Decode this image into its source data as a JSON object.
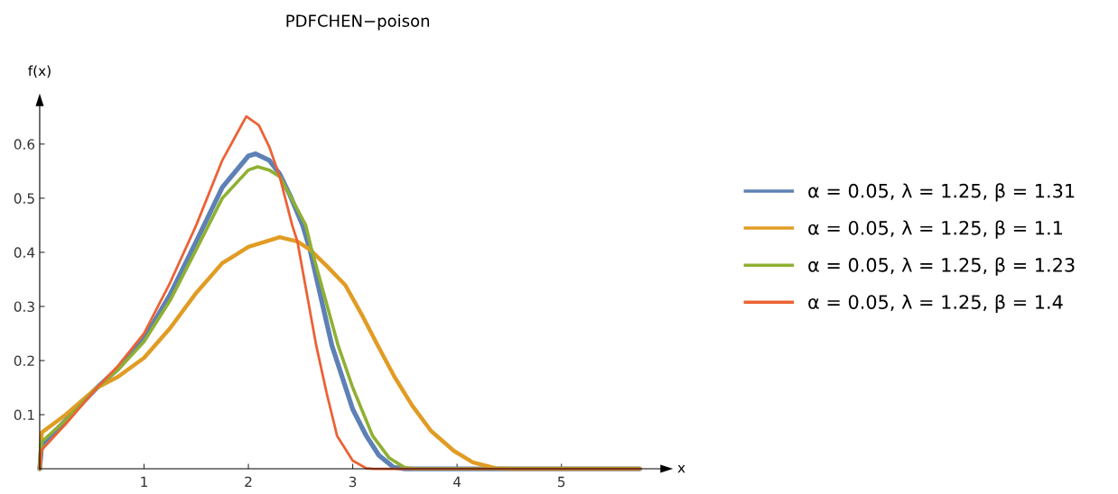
{
  "chart_data": {
    "type": "line",
    "title": "PDFCHEN−poison",
    "xlabel": "x",
    "ylabel": "f(x)",
    "xlim": [
      0,
      6
    ],
    "ylim": [
      0,
      0.68
    ],
    "xticks": [
      1,
      2,
      3,
      4,
      5
    ],
    "yticks": [
      0.1,
      0.2,
      0.3,
      0.4,
      0.5,
      0.6
    ],
    "grid": false,
    "legend": "right",
    "marker": "none",
    "line_style": "solid",
    "series": [
      {
        "name": "α = 0.05, λ = 1.25, β = 1.31",
        "color": "#5e81b5",
        "x": [
          0,
          0.02,
          0.25,
          0.55,
          0.75,
          1,
          1.25,
          1.5,
          1.75,
          2,
          2.07,
          2.2,
          2.3,
          2.4,
          2.52,
          2.59,
          2.8,
          3.0,
          3.13,
          3.25,
          3.39,
          3.5,
          5.75
        ],
        "values": [
          0,
          0.045,
          0.09,
          0.15,
          0.185,
          0.24,
          0.322,
          0.42,
          0.52,
          0.578,
          0.582,
          0.57,
          0.545,
          0.505,
          0.45,
          0.405,
          0.228,
          0.11,
          0.061,
          0.025,
          0.003,
          0,
          0
        ]
      },
      {
        "name": "α = 0.05, λ = 1.25, β = 1.1",
        "color": "#e19c24",
        "x": [
          0,
          0.02,
          0.25,
          0.55,
          0.75,
          1,
          1.25,
          1.5,
          1.75,
          2,
          2.3,
          2.47,
          2.59,
          2.75,
          2.93,
          3.1,
          3.24,
          3.4,
          3.57,
          3.75,
          3.97,
          4.15,
          4.37,
          4.5,
          5.75
        ],
        "values": [
          0,
          0.067,
          0.1,
          0.15,
          0.17,
          0.205,
          0.26,
          0.325,
          0.38,
          0.41,
          0.428,
          0.42,
          0.405,
          0.375,
          0.339,
          0.28,
          0.228,
          0.17,
          0.117,
          0.07,
          0.033,
          0.012,
          0.001,
          0,
          0
        ]
      },
      {
        "name": "α = 0.05, λ = 1.25, β = 1.23",
        "color": "#8fb032",
        "x": [
          0,
          0.02,
          0.25,
          0.55,
          0.75,
          1,
          1.25,
          1.5,
          1.75,
          2,
          2.09,
          2.2,
          2.3,
          2.4,
          2.55,
          2.6,
          2.86,
          3.0,
          3.19,
          3.35,
          3.5,
          3.6,
          5.75
        ],
        "values": [
          0,
          0.05,
          0.09,
          0.15,
          0.183,
          0.235,
          0.311,
          0.405,
          0.5,
          0.552,
          0.558,
          0.552,
          0.54,
          0.505,
          0.45,
          0.41,
          0.228,
          0.15,
          0.061,
          0.02,
          0.002,
          0,
          0
        ]
      },
      {
        "name": "α = 0.05, λ = 1.25, β = 1.4",
        "color": "#eb6235",
        "x": [
          0,
          0.02,
          0.25,
          0.55,
          0.75,
          1,
          1.25,
          1.5,
          1.75,
          1.98,
          2.1,
          2.2,
          2.3,
          2.42,
          2.47,
          2.65,
          2.75,
          2.85,
          3.0,
          3.13,
          3.2,
          5.75
        ],
        "values": [
          0,
          0.035,
          0.083,
          0.15,
          0.19,
          0.25,
          0.344,
          0.45,
          0.57,
          0.651,
          0.635,
          0.595,
          0.54,
          0.45,
          0.42,
          0.228,
          0.14,
          0.061,
          0.015,
          0.001,
          0,
          0
        ]
      }
    ]
  }
}
